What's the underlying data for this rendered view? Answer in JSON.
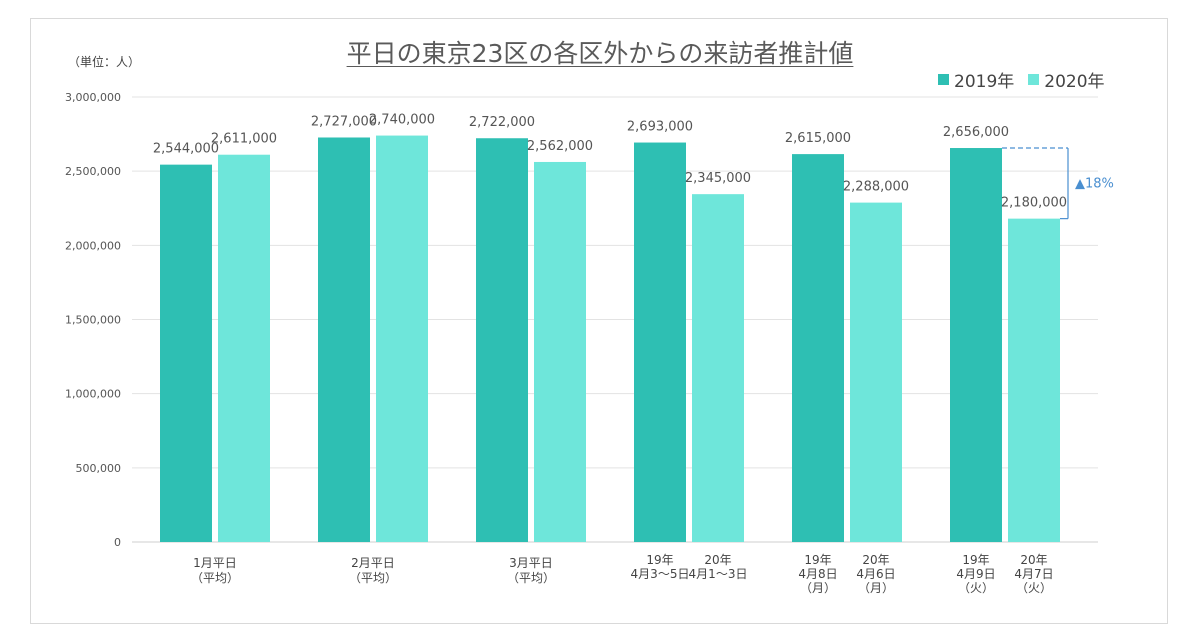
{
  "chart_data": {
    "type": "bar",
    "title": "平日の東京23区の各区外からの来訪者推計値",
    "unit_label": "（単位：人）",
    "yticks": [
      "0",
      "500,000",
      "1,000,000",
      "1,500,000",
      "2,000,000",
      "2,500,000",
      "3,000,000"
    ],
    "ylim": [
      0,
      3000000
    ],
    "grid": true,
    "legend_position": "top-right",
    "series": [
      {
        "name": "2019年",
        "color": "#2ebfb3"
      },
      {
        "name": "2020年",
        "color": "#6ee6da"
      }
    ],
    "groups": [
      {
        "bars": [
          {
            "series": 0,
            "value": 2544000,
            "label": "2,544,000"
          },
          {
            "series": 1,
            "value": 2611000,
            "label": "2,611,000"
          }
        ],
        "xlabels": [
          {
            "lines": [
              "1月平日",
              "（平均）"
            ]
          }
        ]
      },
      {
        "bars": [
          {
            "series": 0,
            "value": 2727000,
            "label": "2,727,000"
          },
          {
            "series": 1,
            "value": 2740000,
            "label": "2,740,000"
          }
        ],
        "xlabels": [
          {
            "lines": [
              "2月平日",
              "（平均）"
            ]
          }
        ]
      },
      {
        "bars": [
          {
            "series": 0,
            "value": 2722000,
            "label": "2,722,000"
          },
          {
            "series": 1,
            "value": 2562000,
            "label": "2,562,000"
          }
        ],
        "xlabels": [
          {
            "lines": [
              "3月平日",
              "（平均）"
            ]
          }
        ]
      },
      {
        "bars": [
          {
            "series": 0,
            "value": 2693000,
            "label": "2,693,000"
          },
          {
            "series": 1,
            "value": 2345000,
            "label": "2,345,000"
          }
        ],
        "xlabels": [
          {
            "lines": [
              "19年",
              "4月3～5日"
            ]
          },
          {
            "lines": [
              "20年",
              "4月1～3日"
            ]
          }
        ]
      },
      {
        "bars": [
          {
            "series": 0,
            "value": 2615000,
            "label": "2,615,000"
          },
          {
            "series": 1,
            "value": 2288000,
            "label": "2,288,000"
          }
        ],
        "xlabels": [
          {
            "lines": [
              "19年",
              "4月8日",
              "（月）"
            ]
          },
          {
            "lines": [
              "20年",
              "4月6日",
              "（月）"
            ]
          }
        ]
      },
      {
        "bars": [
          {
            "series": 0,
            "value": 2656000,
            "label": "2,656,000"
          },
          {
            "series": 1,
            "value": 2180000,
            "label": "2,180,000"
          }
        ],
        "xlabels": [
          {
            "lines": [
              "19年",
              "4月9日",
              "（火）"
            ]
          },
          {
            "lines": [
              "20年",
              "4月7日",
              "（火）"
            ]
          }
        ]
      }
    ],
    "annotation": {
      "text": "▲18%",
      "color": "#4a8fd0",
      "group": 5
    }
  }
}
